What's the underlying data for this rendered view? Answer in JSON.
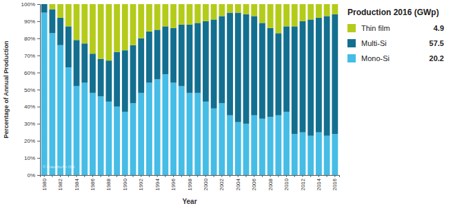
{
  "chart_data": {
    "type": "bar",
    "stacked": true,
    "xlabel": "Year",
    "ylabel": "Percentage of Annual Production",
    "legend": "right",
    "legend_title": "Production 2016 (GWp)",
    "annotations": [
      "© Fraunhofer ISE"
    ],
    "categories": [
      "1980",
      null,
      "1982",
      null,
      "1984",
      null,
      "1986",
      null,
      "1988",
      null,
      "1990",
      null,
      "1992",
      null,
      "1994",
      null,
      "1996",
      null,
      "1998",
      null,
      "2000",
      null,
      "2002",
      null,
      "2004",
      null,
      "2006",
      null,
      "2008",
      null,
      "2010",
      null,
      "2012",
      null,
      "2014",
      null,
      "2016"
    ],
    "series": [
      {
        "name": "Mono-Si",
        "color": "#45bde6",
        "production_2016": 20.2,
        "values": [
          95,
          83,
          76,
          63,
          52,
          54,
          48,
          46,
          43,
          40,
          37,
          42,
          48,
          54,
          56,
          59,
          54,
          52,
          48,
          48,
          43,
          39,
          42,
          35,
          31,
          30,
          35,
          33,
          34,
          35,
          37,
          24,
          25,
          23,
          25,
          23,
          24
        ]
      },
      {
        "name": "Multi-Si",
        "color": "#136f8f",
        "production_2016": 57.5,
        "values": [
          5,
          14,
          16,
          24,
          27,
          23,
          23,
          22,
          24,
          32,
          36,
          34,
          32,
          30,
          29,
          28,
          32,
          36,
          40,
          41,
          47,
          52,
          51,
          60,
          64,
          64,
          58,
          56,
          52,
          48,
          50,
          63,
          65,
          68,
          67,
          70,
          70
        ]
      },
      {
        "name": "Thin film",
        "color": "#b4cb1a",
        "production_2016": 4.9,
        "values": [
          0,
          3,
          8,
          13,
          21,
          23,
          29,
          32,
          33,
          28,
          27,
          24,
          20,
          16,
          15,
          13,
          14,
          12,
          12,
          11,
          10,
          9,
          7,
          5,
          5,
          6,
          7,
          11,
          14,
          17,
          13,
          13,
          10,
          9,
          8,
          7,
          6
        ]
      }
    ],
    "ylim": [
      0,
      100
    ],
    "yticks": [
      {
        "value": 0,
        "label": "0%"
      },
      {
        "value": 10,
        "label": "10%"
      },
      {
        "value": 20,
        "label": "20%"
      },
      {
        "value": 30,
        "label": "30%"
      },
      {
        "value": 40,
        "label": "40%"
      },
      {
        "value": 50,
        "label": "50%"
      },
      {
        "value": 60,
        "label": "60%"
      },
      {
        "value": 70,
        "label": "70%"
      },
      {
        "value": 80,
        "label": "80%"
      },
      {
        "value": 90,
        "label": "90%"
      },
      {
        "value": 100,
        "label": "100%"
      }
    ],
    "grid": false
  }
}
